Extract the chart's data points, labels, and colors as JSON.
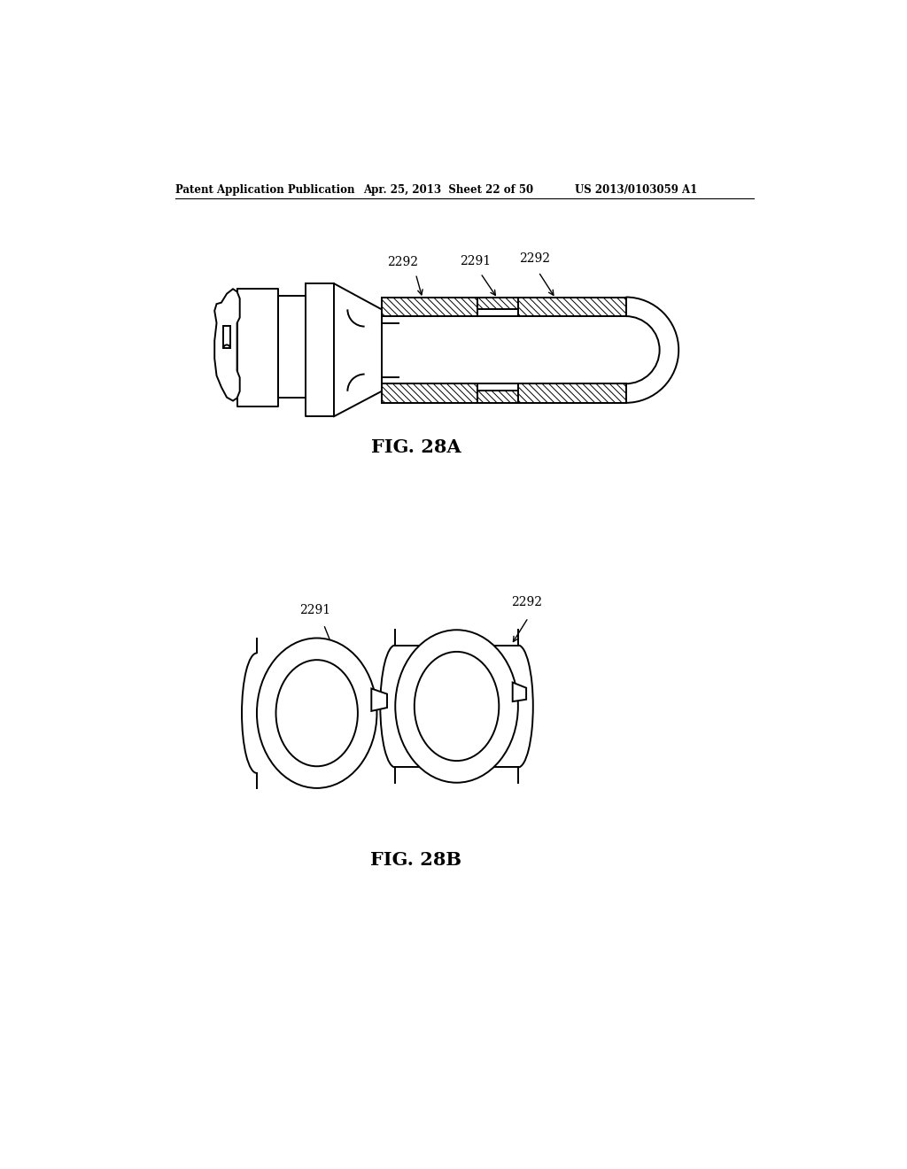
{
  "background_color": "#ffffff",
  "header_left": "Patent Application Publication",
  "header_center": "Apr. 25, 2013  Sheet 22 of 50",
  "header_right": "US 2013/0103059 A1",
  "fig28a_label": "FIG. 28A",
  "fig28b_label": "FIG. 28B",
  "label_2291": "2291",
  "label_2292_left": "2292",
  "label_2292_right": "2292",
  "label_2291_b": "2291",
  "label_2292_b": "2292"
}
